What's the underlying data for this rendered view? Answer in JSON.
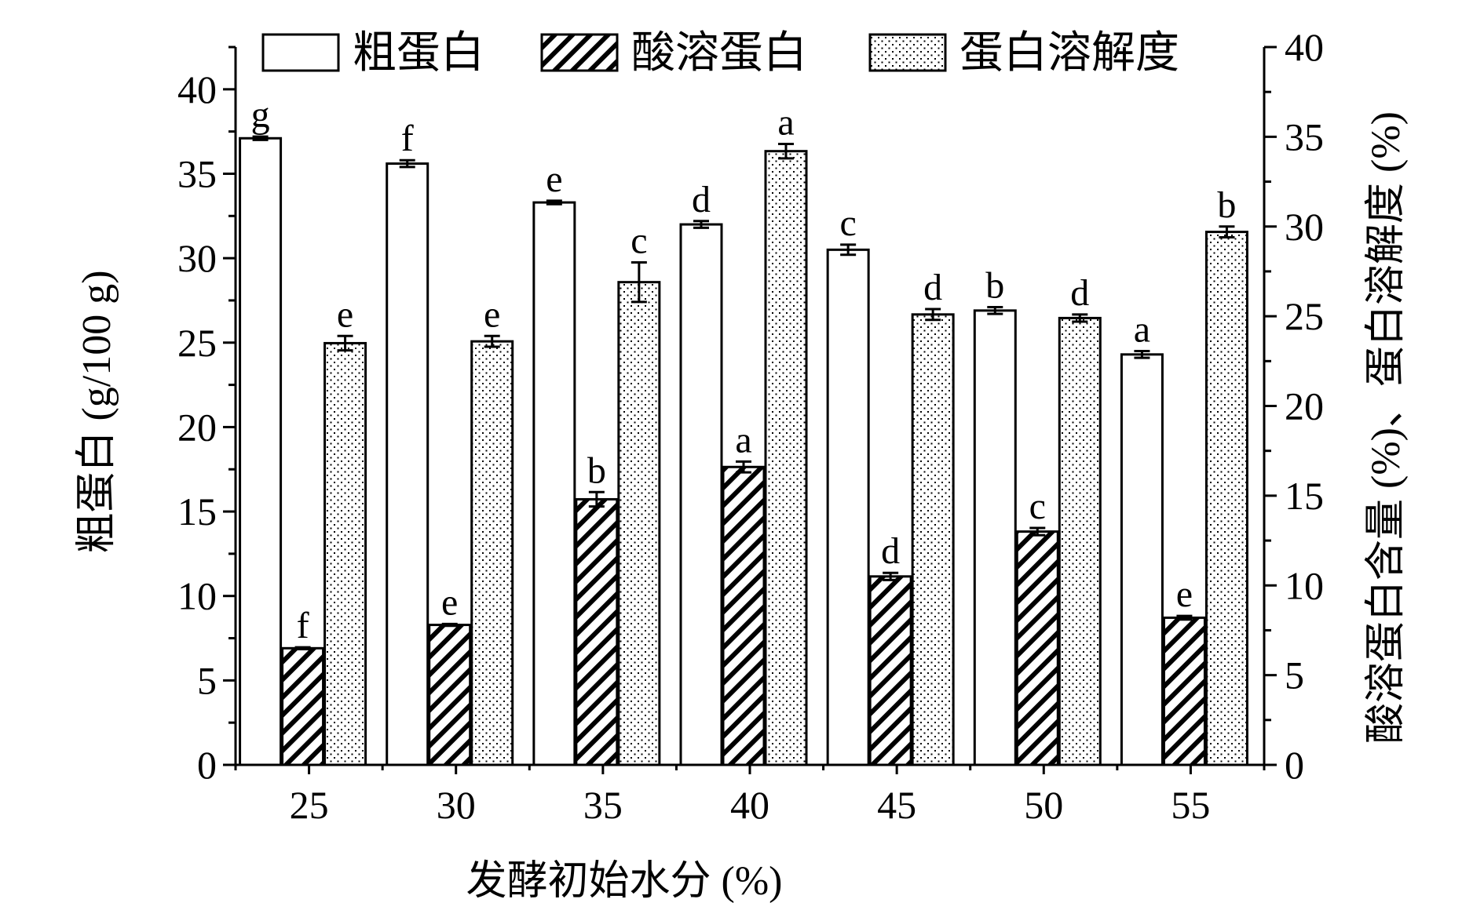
{
  "chart_data": {
    "type": "bar",
    "categories": [
      "25",
      "30",
      "35",
      "40",
      "45",
      "50",
      "55"
    ],
    "xlabel": "发酵初始水分 (%)",
    "ylabel_left": "粗蛋白 (g/100 g)",
    "ylabel_right": "酸溶蛋白含量 (%)、蛋白溶解度 (%)",
    "ylim_left": [
      0,
      42.5
    ],
    "ylim_right": [
      0,
      40
    ],
    "yticks_left": [
      0,
      5,
      10,
      15,
      20,
      25,
      30,
      35,
      40
    ],
    "yticks_right": [
      0,
      5,
      10,
      15,
      20,
      25,
      30,
      35,
      40
    ],
    "legend_position": "top",
    "series": [
      {
        "name": "粗蛋白",
        "axis": "left",
        "fill": "white",
        "values": [
          37.1,
          35.6,
          33.3,
          32.0,
          30.5,
          26.9,
          24.3
        ],
        "errors": [
          0.1,
          0.2,
          0.1,
          0.2,
          0.3,
          0.2,
          0.2
        ],
        "letters": [
          "g",
          "f",
          "e",
          "d",
          "c",
          "b",
          "a"
        ]
      },
      {
        "name": "酸溶蛋白",
        "axis": "right",
        "fill": "hatch",
        "values": [
          6.5,
          7.8,
          14.8,
          16.6,
          10.5,
          13.0,
          8.2
        ],
        "errors": [
          0.05,
          0.05,
          0.4,
          0.3,
          0.2,
          0.2,
          0.1
        ],
        "letters": [
          "f",
          "e",
          "b",
          "a",
          "d",
          "c",
          "e"
        ]
      },
      {
        "name": "蛋白溶解度",
        "axis": "right",
        "fill": "dots",
        "values": [
          23.5,
          23.6,
          26.9,
          34.2,
          25.1,
          24.9,
          29.7
        ],
        "errors": [
          0.4,
          0.3,
          1.1,
          0.4,
          0.3,
          0.2,
          0.3
        ],
        "letters": [
          "e",
          "e",
          "c",
          "a",
          "d",
          "d",
          "b"
        ]
      }
    ]
  }
}
